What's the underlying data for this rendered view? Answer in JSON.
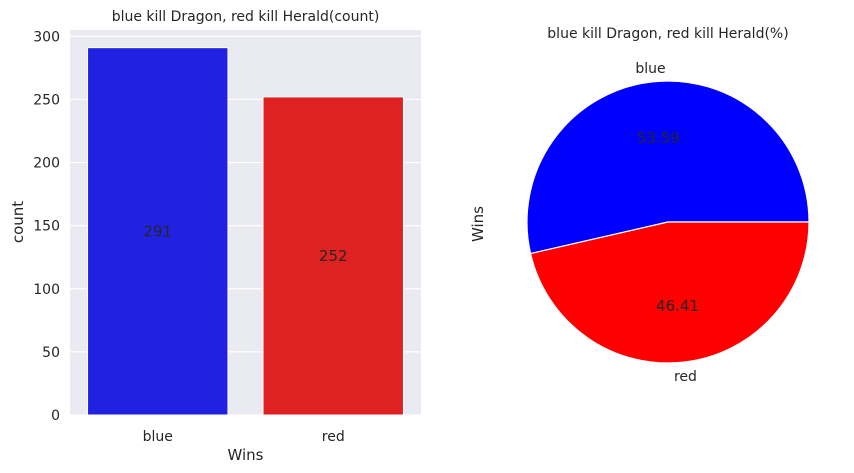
{
  "chart_data": [
    {
      "type": "bar",
      "title": "blue kill Dragon, red kill Herald(count)",
      "xlabel": "Wins",
      "ylabel": "count",
      "categories": [
        "blue",
        "red"
      ],
      "values": [
        291,
        252
      ],
      "data_labels": [
        "291",
        "252"
      ],
      "colors": [
        "#2121e1",
        "#e02121"
      ],
      "ylim": [
        0,
        305
      ],
      "yticks": [
        0,
        50,
        100,
        150,
        200,
        250,
        300
      ],
      "grid": true,
      "background": "#eaeaf2"
    },
    {
      "type": "pie",
      "title": "blue kill Dragon, red kill Herald(%)",
      "ylabel": "Wins",
      "categories": [
        "blue",
        "red"
      ],
      "values": [
        53.59,
        46.41
      ],
      "data_labels": [
        "53.59",
        "46.41"
      ],
      "colors": [
        "#0000ff",
        "#ff0000"
      ]
    }
  ]
}
